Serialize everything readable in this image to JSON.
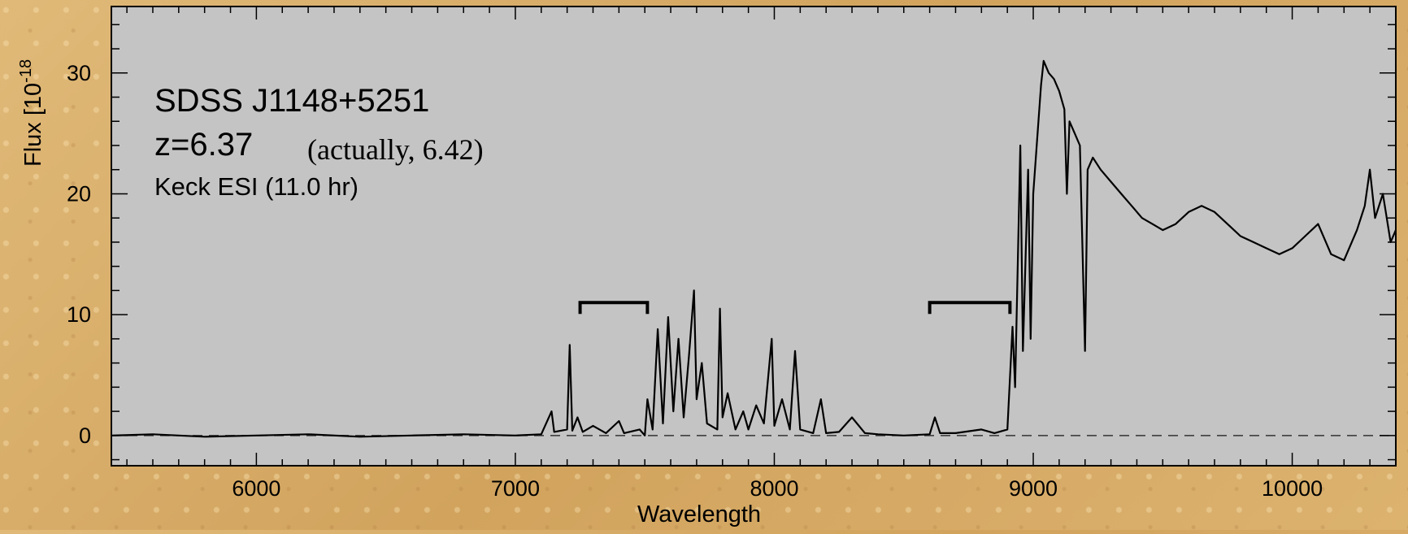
{
  "colors": {
    "plot_bg": "#c4c4c4",
    "frame": "#000000",
    "line": "#000000",
    "slide_bg": "#d9b06a"
  },
  "chart_data": {
    "type": "line",
    "xlabel": "Wavelength",
    "ylabel": "Flux [10",
    "ylabel_exponent": "-18",
    "xlim": [
      5440,
      10400
    ],
    "ylim": [
      -2.5,
      35.5
    ],
    "x_ticks": [
      6000,
      7000,
      8000,
      9000,
      10000
    ],
    "x_tick_labels": [
      "6000",
      "7000",
      "8000",
      "9000",
      "10000"
    ],
    "y_ticks": [
      0,
      10,
      20,
      30
    ],
    "y_tick_labels": [
      "0",
      "10",
      "20",
      "30"
    ],
    "grid": false,
    "zero_line": "dashed",
    "annotations": {
      "object": "SDSS J1148+5251",
      "redshift": "z=6.37",
      "note": "(actually, 6.42)",
      "instrument": "Keck ESI (11.0 hr)"
    },
    "brackets": [
      {
        "x_start": 7250,
        "x_end": 7510,
        "y": 11
      },
      {
        "x_start": 8600,
        "x_end": 8910,
        "y": 11
      }
    ],
    "series": [
      {
        "points": [
          [
            5440,
            0.0
          ],
          [
            5600,
            0.1
          ],
          [
            5800,
            -0.1
          ],
          [
            6000,
            0.0
          ],
          [
            6200,
            0.1
          ],
          [
            6400,
            -0.1
          ],
          [
            6600,
            0.0
          ],
          [
            6800,
            0.1
          ],
          [
            7000,
            0.0
          ],
          [
            7100,
            0.1
          ],
          [
            7140,
            2.0
          ],
          [
            7150,
            0.3
          ],
          [
            7200,
            0.5
          ],
          [
            7210,
            7.5
          ],
          [
            7220,
            0.4
          ],
          [
            7240,
            1.5
          ],
          [
            7260,
            0.3
          ],
          [
            7300,
            0.8
          ],
          [
            7350,
            0.2
          ],
          [
            7400,
            1.2
          ],
          [
            7420,
            0.2
          ],
          [
            7480,
            0.5
          ],
          [
            7500,
            0.0
          ],
          [
            7510,
            3.0
          ],
          [
            7530,
            0.5
          ],
          [
            7550,
            8.8
          ],
          [
            7570,
            1.0
          ],
          [
            7590,
            9.8
          ],
          [
            7610,
            2.0
          ],
          [
            7630,
            8.0
          ],
          [
            7650,
            1.5
          ],
          [
            7670,
            6.5
          ],
          [
            7690,
            12.0
          ],
          [
            7700,
            3.0
          ],
          [
            7720,
            6.0
          ],
          [
            7740,
            1.0
          ],
          [
            7780,
            0.5
          ],
          [
            7790,
            10.5
          ],
          [
            7800,
            1.5
          ],
          [
            7820,
            3.5
          ],
          [
            7850,
            0.5
          ],
          [
            7880,
            2.0
          ],
          [
            7900,
            0.5
          ],
          [
            7930,
            2.5
          ],
          [
            7960,
            1.0
          ],
          [
            7990,
            8.0
          ],
          [
            8000,
            0.8
          ],
          [
            8030,
            3.0
          ],
          [
            8060,
            0.5
          ],
          [
            8080,
            7.0
          ],
          [
            8100,
            0.5
          ],
          [
            8150,
            0.2
          ],
          [
            8180,
            3.0
          ],
          [
            8200,
            0.2
          ],
          [
            8250,
            0.3
          ],
          [
            8300,
            1.5
          ],
          [
            8350,
            0.2
          ],
          [
            8400,
            0.1
          ],
          [
            8500,
            0.0
          ],
          [
            8600,
            0.1
          ],
          [
            8620,
            1.5
          ],
          [
            8640,
            0.2
          ],
          [
            8700,
            0.2
          ],
          [
            8800,
            0.5
          ],
          [
            8850,
            0.2
          ],
          [
            8900,
            0.5
          ],
          [
            8920,
            9.0
          ],
          [
            8930,
            4.0
          ],
          [
            8950,
            24.0
          ],
          [
            8960,
            7.0
          ],
          [
            8980,
            22.0
          ],
          [
            8990,
            8.0
          ],
          [
            9000,
            20.0
          ],
          [
            9020,
            26.0
          ],
          [
            9030,
            29.0
          ],
          [
            9040,
            31.0
          ],
          [
            9060,
            30.0
          ],
          [
            9080,
            29.5
          ],
          [
            9100,
            28.5
          ],
          [
            9120,
            27.0
          ],
          [
            9130,
            20.0
          ],
          [
            9140,
            26.0
          ],
          [
            9160,
            25.0
          ],
          [
            9180,
            24.0
          ],
          [
            9200,
            7.0
          ],
          [
            9210,
            22.0
          ],
          [
            9230,
            23.0
          ],
          [
            9260,
            22.0
          ],
          [
            9300,
            21.0
          ],
          [
            9340,
            20.0
          ],
          [
            9380,
            19.0
          ],
          [
            9420,
            18.0
          ],
          [
            9460,
            17.5
          ],
          [
            9500,
            17.0
          ],
          [
            9550,
            17.5
          ],
          [
            9600,
            18.5
          ],
          [
            9650,
            19.0
          ],
          [
            9700,
            18.5
          ],
          [
            9750,
            17.5
          ],
          [
            9800,
            16.5
          ],
          [
            9850,
            16.0
          ],
          [
            9900,
            15.5
          ],
          [
            9950,
            15.0
          ],
          [
            10000,
            15.5
          ],
          [
            10050,
            16.5
          ],
          [
            10100,
            17.5
          ],
          [
            10150,
            15.0
          ],
          [
            10200,
            14.5
          ],
          [
            10250,
            17.0
          ],
          [
            10280,
            19.0
          ],
          [
            10300,
            22.0
          ],
          [
            10320,
            18.0
          ],
          [
            10350,
            20.0
          ],
          [
            10380,
            16.0
          ],
          [
            10400,
            17.0
          ]
        ]
      }
    ]
  }
}
